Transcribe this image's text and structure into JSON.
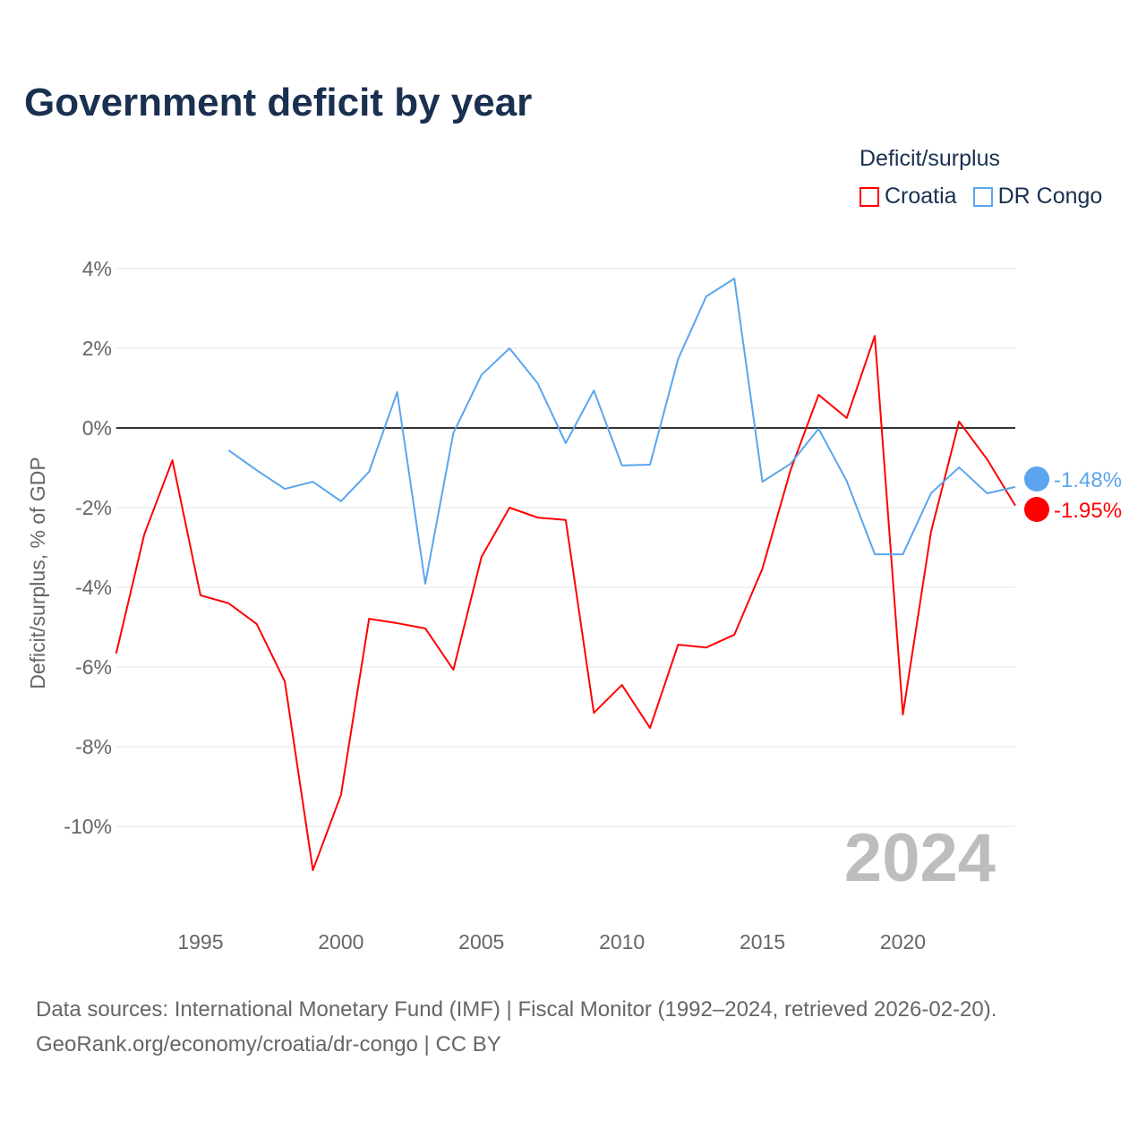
{
  "title": "Government deficit by year",
  "legend": {
    "title": "Deficit/surplus",
    "items": [
      {
        "label": "Croatia",
        "color": "#ff0000"
      },
      {
        "label": "DR Congo",
        "color": "#5aa5ee"
      }
    ]
  },
  "footer": {
    "line1": "Data sources: International Monetary Fund (IMF) | Fiscal Monitor (1992–2024, retrieved 2026-02-20).",
    "line2": "GeoRank.org/economy/croatia/dr-congo | CC BY"
  },
  "chart_data": {
    "type": "line",
    "title": "Government deficit by year",
    "xlabel": "",
    "ylabel": "Deficit/surplus, % of GDP",
    "xlim": [
      1992,
      2024
    ],
    "ylim": [
      -12,
      4.5
    ],
    "x_ticks": [
      1995,
      2000,
      2005,
      2010,
      2015,
      2020
    ],
    "y_ticks": [
      {
        "v": 4,
        "label": "4%"
      },
      {
        "v": 2,
        "label": "2%"
      },
      {
        "v": 0,
        "label": "0%"
      },
      {
        "v": -2,
        "label": "-2%"
      },
      {
        "v": -4,
        "label": "-4%"
      },
      {
        "v": -6,
        "label": "-6%"
      },
      {
        "v": -8,
        "label": "-8%"
      },
      {
        "v": -10,
        "label": "-10%"
      }
    ],
    "year_watermark": "2024",
    "series": [
      {
        "name": "Croatia",
        "color": "#ff0000",
        "end_label": "-1.95%",
        "start_year": 1992,
        "values": [
          -5.66,
          -2.67,
          -0.81,
          -4.2,
          -4.4,
          -4.92,
          -6.36,
          -11.1,
          -9.21,
          -4.79,
          -4.9,
          -5.03,
          -6.07,
          -3.24,
          -2.0,
          -2.25,
          -2.31,
          -7.15,
          -6.45,
          -7.53,
          -5.44,
          -5.51,
          -5.19,
          -3.53,
          -1.06,
          0.83,
          0.25,
          2.31,
          -7.19,
          -2.61,
          0.16,
          -0.79,
          -1.95
        ]
      },
      {
        "name": "DR Congo",
        "color": "#5aa5ee",
        "end_label": "-1.48%",
        "start_year": 1996,
        "values": [
          -0.56,
          -1.06,
          -1.53,
          -1.35,
          -1.84,
          -1.1,
          0.9,
          -3.91,
          -0.13,
          1.33,
          2.0,
          1.12,
          -0.38,
          0.94,
          -0.94,
          -0.92,
          1.73,
          3.3,
          3.75,
          -1.35,
          -0.9,
          -0.02,
          -1.33,
          -3.17,
          -3.17,
          -1.64,
          -0.99,
          -1.64,
          -1.48
        ]
      }
    ]
  }
}
